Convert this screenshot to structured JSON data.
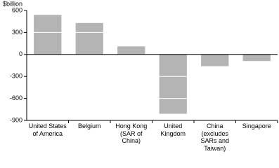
{
  "chart_data": {
    "type": "bar",
    "y_label": "$billion",
    "categories": [
      "United States of America",
      "Belgium",
      "Hong Kong (SAR of China)",
      "United Kingdom",
      "China (excludes SARs and Taiwan)",
      "Singapore"
    ],
    "values": [
      540,
      430,
      110,
      -810,
      -160,
      -90
    ],
    "color": "#b4b4b4",
    "ylim": [
      -900,
      600
    ],
    "yticks": [
      600,
      300,
      0,
      -300,
      -600,
      -900
    ],
    "grid": true,
    "grid_color": "#ffffff"
  }
}
